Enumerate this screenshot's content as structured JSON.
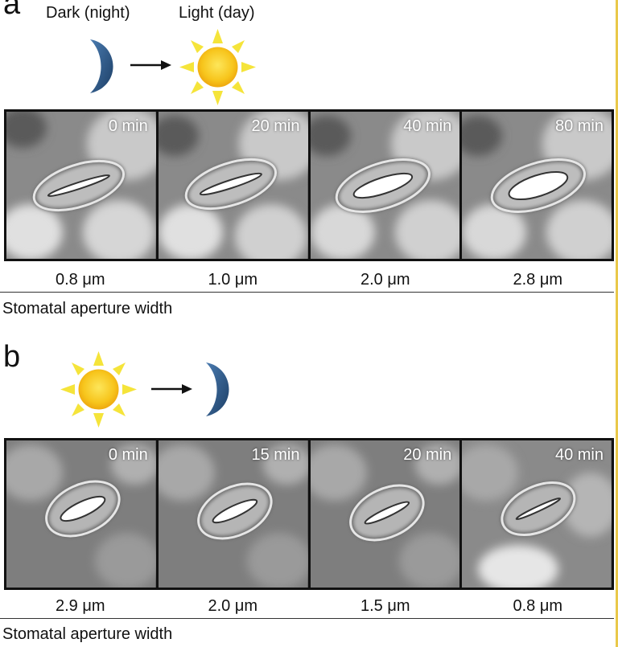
{
  "panels": [
    {
      "letter": "a",
      "from_label": "Dark (night)",
      "to_label": "Light (day)",
      "from_icon": "moon-icon",
      "to_icon": "sun-icon",
      "times": [
        "0 min",
        "20 min",
        "40 min",
        "80 min"
      ],
      "widths": [
        "0.8 μm",
        "1.0 μm",
        "2.0 μm",
        "2.8 μm"
      ],
      "caption": "Stomatal aperture width"
    },
    {
      "letter": "b",
      "from_icon": "sun-icon",
      "to_icon": "moon-icon",
      "times": [
        "0 min",
        "15 min",
        "20 min",
        "40 min"
      ],
      "widths": [
        "2.9 μm",
        "2.0 μm",
        "1.5 μm",
        "0.8 μm"
      ],
      "caption": "Stomatal aperture width"
    }
  ],
  "colors": {
    "sun_core": "#f7c51c",
    "sun_rays": "#f5e43a",
    "moon": "#2e5a8a",
    "frame_edge": "#e9c84a"
  }
}
